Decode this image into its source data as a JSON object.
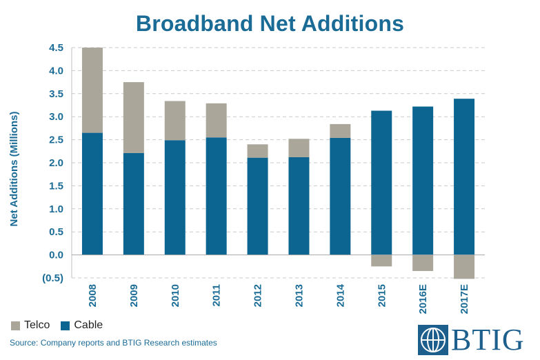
{
  "chart_data": {
    "type": "bar",
    "stacked": true,
    "title": "Broadband Net Additions",
    "ylabel": "Net Additions (Millions)",
    "xlabel": "",
    "ylim": [
      -0.5,
      4.5
    ],
    "yticks": [
      {
        "value": 4.5,
        "label": "4.5"
      },
      {
        "value": 4.0,
        "label": "4.0"
      },
      {
        "value": 3.5,
        "label": "3.5"
      },
      {
        "value": 3.0,
        "label": "3.0"
      },
      {
        "value": 2.5,
        "label": "2.5"
      },
      {
        "value": 2.0,
        "label": "2.0"
      },
      {
        "value": 1.5,
        "label": "1.5"
      },
      {
        "value": 1.0,
        "label": "1.0"
      },
      {
        "value": 0.5,
        "label": "0.5"
      },
      {
        "value": 0.0,
        "label": "0.0"
      },
      {
        "value": -0.5,
        "label": "(0.5)"
      }
    ],
    "grid": "horizontal dashed",
    "categories": [
      "2008",
      "2009",
      "2010",
      "2011",
      "2012",
      "2013",
      "2014",
      "2015",
      "2016E",
      "2017E"
    ],
    "series": [
      {
        "name": "Cable",
        "color": "#0c6591",
        "values": [
          2.65,
          2.21,
          2.49,
          2.55,
          2.11,
          2.12,
          2.54,
          3.13,
          3.22,
          3.39
        ]
      },
      {
        "name": "Telco",
        "color": "#aba69a",
        "values": [
          1.85,
          1.54,
          0.85,
          0.74,
          0.29,
          0.4,
          0.3,
          -0.25,
          -0.35,
          -0.52
        ]
      }
    ],
    "legend": {
      "position": "bottom-left",
      "entries": [
        "Telco",
        "Cable"
      ]
    }
  },
  "source": "Source: Company reports and BTIG Research estimates",
  "logo": {
    "text": "BTIG",
    "color": "#1d5f8c"
  }
}
